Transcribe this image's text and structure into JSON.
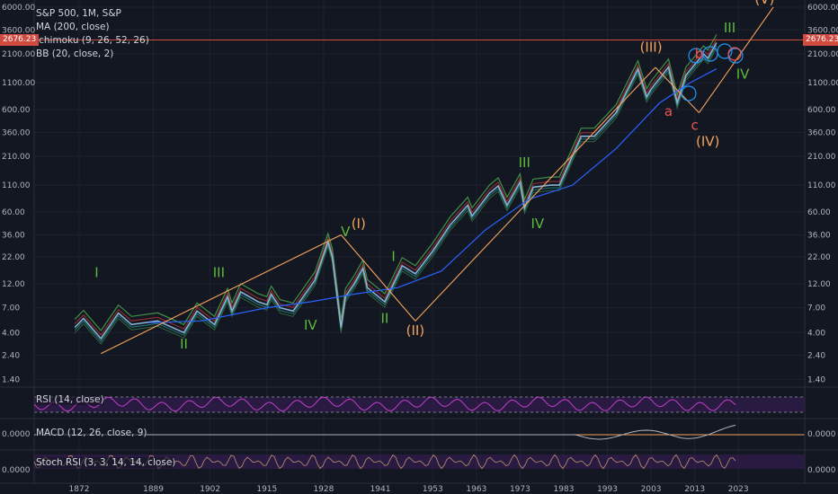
{
  "legend": {
    "symbol": "S&P 500, 1M, S&P",
    "indicators": [
      "MA (200, close)",
      "Ichimoku (9, 26, 52, 26)",
      "BB (20, close, 2)"
    ]
  },
  "last_price": "2676.23",
  "panes": {
    "rsi": {
      "label": "RSI (14, close)"
    },
    "macd": {
      "label": "MACD (12, 26, close, 9)",
      "value": "0.0000"
    },
    "stoch": {
      "label": "Stoch RSI (3, 3, 14, 14, close)",
      "value": "0.0000"
    }
  },
  "colors": {
    "background": "#131722",
    "price": "#8ab0d6",
    "ma": "#2962ff",
    "ichimoku_a": "#4caf50",
    "ichimoku_b": "#e53935",
    "bb": "#26a69a",
    "waves_green": "#5dbb3b",
    "waves_orange": "#f5a35a",
    "waves_red": "#ef5350",
    "trend_line": "#f5a35a",
    "rsi": "#c33fcb",
    "pane_band": "#3b1e5a"
  },
  "chart_data": {
    "type": "line",
    "title": "S&P 500, 1M, S&P",
    "x_ticks": [
      "1872",
      "1889",
      "1902",
      "1915",
      "1928",
      "1941",
      "1953",
      "1963",
      "1973",
      "1983",
      "1993",
      "2003",
      "2013",
      "2023"
    ],
    "y_ticks": [
      "6000.00",
      "3600.00",
      "2100.00",
      "1100.00",
      "600.00",
      "360.00",
      "210.00",
      "110.00",
      "60.00",
      "36.00",
      "22.00",
      "12.00",
      "7.00",
      "4.00",
      "2.40",
      "1.40"
    ],
    "y_scale": "log",
    "series": [
      {
        "name": "S&P 500",
        "x": [
          1871,
          1873,
          1877,
          1881,
          1884,
          1890,
          1896,
          1899,
          1903,
          1906,
          1907,
          1909,
          1913,
          1915,
          1916,
          1918,
          1921,
          1926,
          1929,
          1930,
          1932,
          1933,
          1935,
          1937,
          1938,
          1942,
          1946,
          1949,
          1953,
          1957,
          1961,
          1962,
          1966,
          1968,
          1970,
          1973,
          1974,
          1976,
          1980,
          1982,
          1987,
          1990,
          1995,
          2000,
          2002,
          2003,
          2007,
          2009,
          2011,
          2015,
          2016,
          2018
        ],
        "y": [
          4.5,
          5.5,
          3.5,
          6.2,
          4.8,
          5.2,
          4.0,
          6.5,
          4.8,
          9.0,
          6.5,
          10.0,
          8.0,
          7.5,
          9.5,
          7.0,
          6.5,
          13.0,
          31.0,
          22.0,
          4.5,
          9.0,
          12.0,
          17.0,
          11.0,
          8.0,
          18.0,
          15.0,
          25.0,
          45.0,
          70.0,
          55.0,
          92.0,
          108.0,
          70.0,
          118.0,
          66.0,
          105.0,
          110.0,
          110.0,
          330.0,
          330.0,
          560.0,
          1500.0,
          800.0,
          950.0,
          1560.0,
          700.0,
          1300.0,
          2100.0,
          1900.0,
          2700.0
        ]
      },
      {
        "name": "MA (200, close)",
        "x": [
          1888,
          1900,
          1915,
          1925,
          1935,
          1945,
          1955,
          1965,
          1975,
          1985,
          1995,
          2005,
          2012,
          2018
        ],
        "y": [
          5.0,
          5.2,
          7.0,
          8.0,
          9.5,
          11.0,
          16.0,
          40.0,
          80.0,
          110.0,
          250.0,
          700.0,
          1100.0,
          1500.0
        ]
      }
    ],
    "wave_labels": [
      {
        "text": "I",
        "x": 1876,
        "y": 14.0,
        "color": "green"
      },
      {
        "text": "II",
        "x": 1896,
        "y": 2.8,
        "color": "green"
      },
      {
        "text": "III",
        "x": 1904,
        "y": 14.0,
        "color": "green"
      },
      {
        "text": "IV",
        "x": 1925,
        "y": 4.3,
        "color": "green"
      },
      {
        "text": "V",
        "x": 1933,
        "y": 35.0,
        "color": "green"
      },
      {
        "text": "(I)",
        "x": 1936,
        "y": 42.0,
        "color": "orange"
      },
      {
        "text": "I",
        "x": 1944,
        "y": 20.0,
        "color": "green"
      },
      {
        "text": "II",
        "x": 1942,
        "y": 5.0,
        "color": "green"
      },
      {
        "text": "(II)",
        "x": 1949,
        "y": 3.8,
        "color": "orange"
      },
      {
        "text": "III",
        "x": 1974,
        "y": 165.0,
        "color": "green"
      },
      {
        "text": "IV",
        "x": 1977,
        "y": 42.0,
        "color": "green"
      },
      {
        "text": "(III)",
        "x": 2003,
        "y": 2200.0,
        "color": "orange"
      },
      {
        "text": "b",
        "x": 2014,
        "y": 1900.0,
        "color": "red"
      },
      {
        "text": "a",
        "x": 2007,
        "y": 520.0,
        "color": "red"
      },
      {
        "text": "c",
        "x": 2013,
        "y": 380.0,
        "color": "red"
      },
      {
        "text": "(IV)",
        "x": 2016,
        "y": 265.0,
        "color": "orange"
      },
      {
        "text": "(V)",
        "x": 2029,
        "y": 6500.0,
        "color": "orange"
      },
      {
        "text": "III",
        "x": 2021,
        "y": 3400.0,
        "color": "green"
      },
      {
        "text": "IV",
        "x": 2024,
        "y": 1200.0,
        "color": "green"
      }
    ],
    "trend_lines": [
      {
        "x": [
          1877,
          1932
        ],
        "y": [
          2.5,
          36.0
        ]
      },
      {
        "x": [
          1932,
          1949
        ],
        "y": [
          36.0,
          5.2
        ]
      },
      {
        "x": [
          1949,
          2004
        ],
        "y": [
          5.2,
          1550.0
        ]
      },
      {
        "x": [
          2004,
          2014
        ],
        "y": [
          1550.0,
          560.0
        ]
      },
      {
        "x": [
          2014,
          2031
        ],
        "y": [
          560.0,
          6000.0
        ]
      }
    ]
  }
}
